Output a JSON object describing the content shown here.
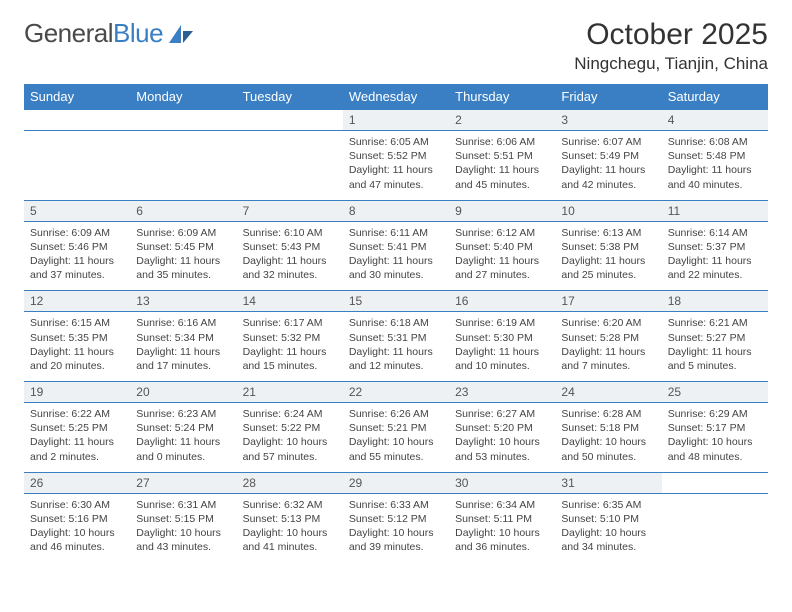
{
  "brand": {
    "part1": "General",
    "part2": "Blue"
  },
  "title": "October 2025",
  "location": "Ningchegu, Tianjin, China",
  "colors": {
    "header_bg": "#3a7fc4",
    "header_text": "#ffffff",
    "daynum_bg": "#eef1f4",
    "daynum_text": "#555555",
    "border": "#3a7fc4",
    "body_text": "#444444",
    "page_bg": "#ffffff"
  },
  "typography": {
    "title_fontsize": 30,
    "location_fontsize": 17,
    "dow_fontsize": 13,
    "daynum_fontsize": 12,
    "cell_fontsize": 10.5
  },
  "day_names": [
    "Sunday",
    "Monday",
    "Tuesday",
    "Wednesday",
    "Thursday",
    "Friday",
    "Saturday"
  ],
  "weeks": [
    [
      null,
      null,
      null,
      {
        "n": "1",
        "l1": "Sunrise: 6:05 AM",
        "l2": "Sunset: 5:52 PM",
        "l3": "Daylight: 11 hours",
        "l4": "and 47 minutes."
      },
      {
        "n": "2",
        "l1": "Sunrise: 6:06 AM",
        "l2": "Sunset: 5:51 PM",
        "l3": "Daylight: 11 hours",
        "l4": "and 45 minutes."
      },
      {
        "n": "3",
        "l1": "Sunrise: 6:07 AM",
        "l2": "Sunset: 5:49 PM",
        "l3": "Daylight: 11 hours",
        "l4": "and 42 minutes."
      },
      {
        "n": "4",
        "l1": "Sunrise: 6:08 AM",
        "l2": "Sunset: 5:48 PM",
        "l3": "Daylight: 11 hours",
        "l4": "and 40 minutes."
      }
    ],
    [
      {
        "n": "5",
        "l1": "Sunrise: 6:09 AM",
        "l2": "Sunset: 5:46 PM",
        "l3": "Daylight: 11 hours",
        "l4": "and 37 minutes."
      },
      {
        "n": "6",
        "l1": "Sunrise: 6:09 AM",
        "l2": "Sunset: 5:45 PM",
        "l3": "Daylight: 11 hours",
        "l4": "and 35 minutes."
      },
      {
        "n": "7",
        "l1": "Sunrise: 6:10 AM",
        "l2": "Sunset: 5:43 PM",
        "l3": "Daylight: 11 hours",
        "l4": "and 32 minutes."
      },
      {
        "n": "8",
        "l1": "Sunrise: 6:11 AM",
        "l2": "Sunset: 5:41 PM",
        "l3": "Daylight: 11 hours",
        "l4": "and 30 minutes."
      },
      {
        "n": "9",
        "l1": "Sunrise: 6:12 AM",
        "l2": "Sunset: 5:40 PM",
        "l3": "Daylight: 11 hours",
        "l4": "and 27 minutes."
      },
      {
        "n": "10",
        "l1": "Sunrise: 6:13 AM",
        "l2": "Sunset: 5:38 PM",
        "l3": "Daylight: 11 hours",
        "l4": "and 25 minutes."
      },
      {
        "n": "11",
        "l1": "Sunrise: 6:14 AM",
        "l2": "Sunset: 5:37 PM",
        "l3": "Daylight: 11 hours",
        "l4": "and 22 minutes."
      }
    ],
    [
      {
        "n": "12",
        "l1": "Sunrise: 6:15 AM",
        "l2": "Sunset: 5:35 PM",
        "l3": "Daylight: 11 hours",
        "l4": "and 20 minutes."
      },
      {
        "n": "13",
        "l1": "Sunrise: 6:16 AM",
        "l2": "Sunset: 5:34 PM",
        "l3": "Daylight: 11 hours",
        "l4": "and 17 minutes."
      },
      {
        "n": "14",
        "l1": "Sunrise: 6:17 AM",
        "l2": "Sunset: 5:32 PM",
        "l3": "Daylight: 11 hours",
        "l4": "and 15 minutes."
      },
      {
        "n": "15",
        "l1": "Sunrise: 6:18 AM",
        "l2": "Sunset: 5:31 PM",
        "l3": "Daylight: 11 hours",
        "l4": "and 12 minutes."
      },
      {
        "n": "16",
        "l1": "Sunrise: 6:19 AM",
        "l2": "Sunset: 5:30 PM",
        "l3": "Daylight: 11 hours",
        "l4": "and 10 minutes."
      },
      {
        "n": "17",
        "l1": "Sunrise: 6:20 AM",
        "l2": "Sunset: 5:28 PM",
        "l3": "Daylight: 11 hours",
        "l4": "and 7 minutes."
      },
      {
        "n": "18",
        "l1": "Sunrise: 6:21 AM",
        "l2": "Sunset: 5:27 PM",
        "l3": "Daylight: 11 hours",
        "l4": "and 5 minutes."
      }
    ],
    [
      {
        "n": "19",
        "l1": "Sunrise: 6:22 AM",
        "l2": "Sunset: 5:25 PM",
        "l3": "Daylight: 11 hours",
        "l4": "and 2 minutes."
      },
      {
        "n": "20",
        "l1": "Sunrise: 6:23 AM",
        "l2": "Sunset: 5:24 PM",
        "l3": "Daylight: 11 hours",
        "l4": "and 0 minutes."
      },
      {
        "n": "21",
        "l1": "Sunrise: 6:24 AM",
        "l2": "Sunset: 5:22 PM",
        "l3": "Daylight: 10 hours",
        "l4": "and 57 minutes."
      },
      {
        "n": "22",
        "l1": "Sunrise: 6:26 AM",
        "l2": "Sunset: 5:21 PM",
        "l3": "Daylight: 10 hours",
        "l4": "and 55 minutes."
      },
      {
        "n": "23",
        "l1": "Sunrise: 6:27 AM",
        "l2": "Sunset: 5:20 PM",
        "l3": "Daylight: 10 hours",
        "l4": "and 53 minutes."
      },
      {
        "n": "24",
        "l1": "Sunrise: 6:28 AM",
        "l2": "Sunset: 5:18 PM",
        "l3": "Daylight: 10 hours",
        "l4": "and 50 minutes."
      },
      {
        "n": "25",
        "l1": "Sunrise: 6:29 AM",
        "l2": "Sunset: 5:17 PM",
        "l3": "Daylight: 10 hours",
        "l4": "and 48 minutes."
      }
    ],
    [
      {
        "n": "26",
        "l1": "Sunrise: 6:30 AM",
        "l2": "Sunset: 5:16 PM",
        "l3": "Daylight: 10 hours",
        "l4": "and 46 minutes."
      },
      {
        "n": "27",
        "l1": "Sunrise: 6:31 AM",
        "l2": "Sunset: 5:15 PM",
        "l3": "Daylight: 10 hours",
        "l4": "and 43 minutes."
      },
      {
        "n": "28",
        "l1": "Sunrise: 6:32 AM",
        "l2": "Sunset: 5:13 PM",
        "l3": "Daylight: 10 hours",
        "l4": "and 41 minutes."
      },
      {
        "n": "29",
        "l1": "Sunrise: 6:33 AM",
        "l2": "Sunset: 5:12 PM",
        "l3": "Daylight: 10 hours",
        "l4": "and 39 minutes."
      },
      {
        "n": "30",
        "l1": "Sunrise: 6:34 AM",
        "l2": "Sunset: 5:11 PM",
        "l3": "Daylight: 10 hours",
        "l4": "and 36 minutes."
      },
      {
        "n": "31",
        "l1": "Sunrise: 6:35 AM",
        "l2": "Sunset: 5:10 PM",
        "l3": "Daylight: 10 hours",
        "l4": "and 34 minutes."
      },
      null
    ]
  ]
}
